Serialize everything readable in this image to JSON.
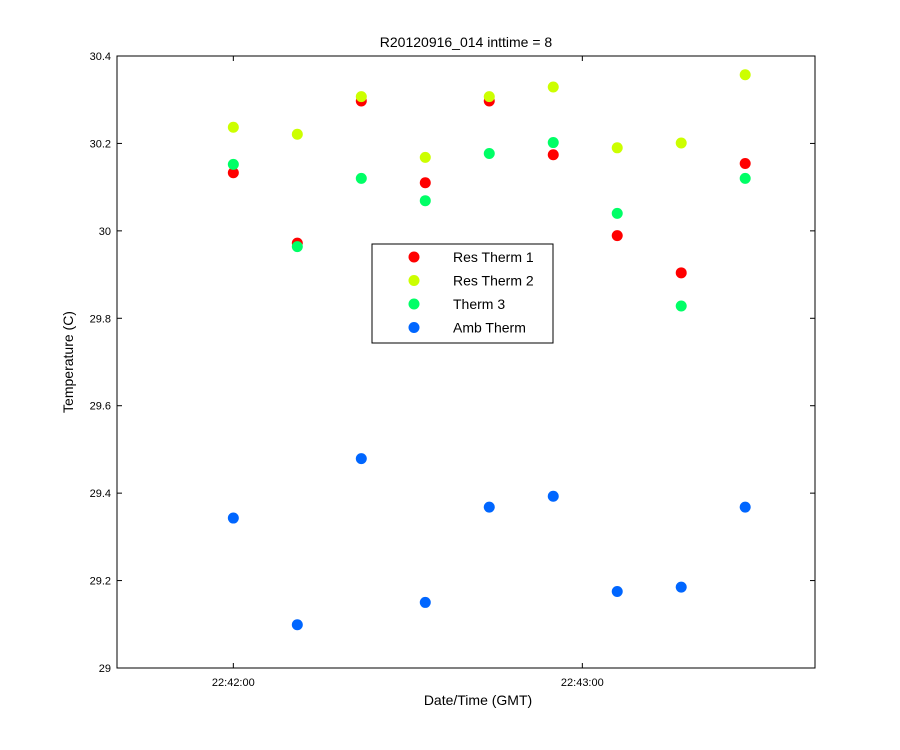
{
  "chart_data": {
    "type": "scatter",
    "title": "R20120916_014 inttime = 8",
    "xlabel": "Date/Time (GMT)",
    "ylabel": "Temperature (C)",
    "xlim": [
      "22:41:40",
      "22:43:40"
    ],
    "ylim": [
      29,
      30.4
    ],
    "xticks": [
      "22:42:00",
      "22:43:00"
    ],
    "yticks": [
      29,
      29.2,
      29.4,
      29.6,
      29.8,
      30,
      30.2,
      30.4
    ],
    "ytick_labels": [
      "29",
      "29.2",
      "29.4",
      "29.6",
      "29.8",
      "30",
      "30.2",
      "30.4"
    ],
    "grid": false,
    "legend_position": "center",
    "x": [
      "22:42:00",
      "22:42:11",
      "22:42:22",
      "22:42:33",
      "22:42:44",
      "22:42:55",
      "22:43:06",
      "22:43:17",
      "22:43:28"
    ],
    "series": [
      {
        "name": "Res Therm 1",
        "color": "#ff0000",
        "values": [
          30.133,
          29.972,
          30.297,
          30.11,
          30.297,
          30.174,
          29.989,
          29.904,
          30.154
        ]
      },
      {
        "name": "Res Therm 2",
        "color": "#ccff00",
        "values": [
          30.237,
          30.221,
          30.307,
          30.168,
          30.307,
          30.329,
          30.19,
          30.201,
          30.357
        ]
      },
      {
        "name": "Therm 3",
        "color": "#00ff66",
        "values": [
          30.152,
          29.964,
          30.12,
          30.069,
          30.177,
          30.202,
          30.04,
          29.828,
          30.12
        ]
      },
      {
        "name": "Amb Therm",
        "color": "#0066ff",
        "values": [
          29.343,
          29.099,
          29.479,
          29.15,
          29.368,
          29.393,
          29.175,
          29.185,
          29.368
        ]
      }
    ]
  }
}
